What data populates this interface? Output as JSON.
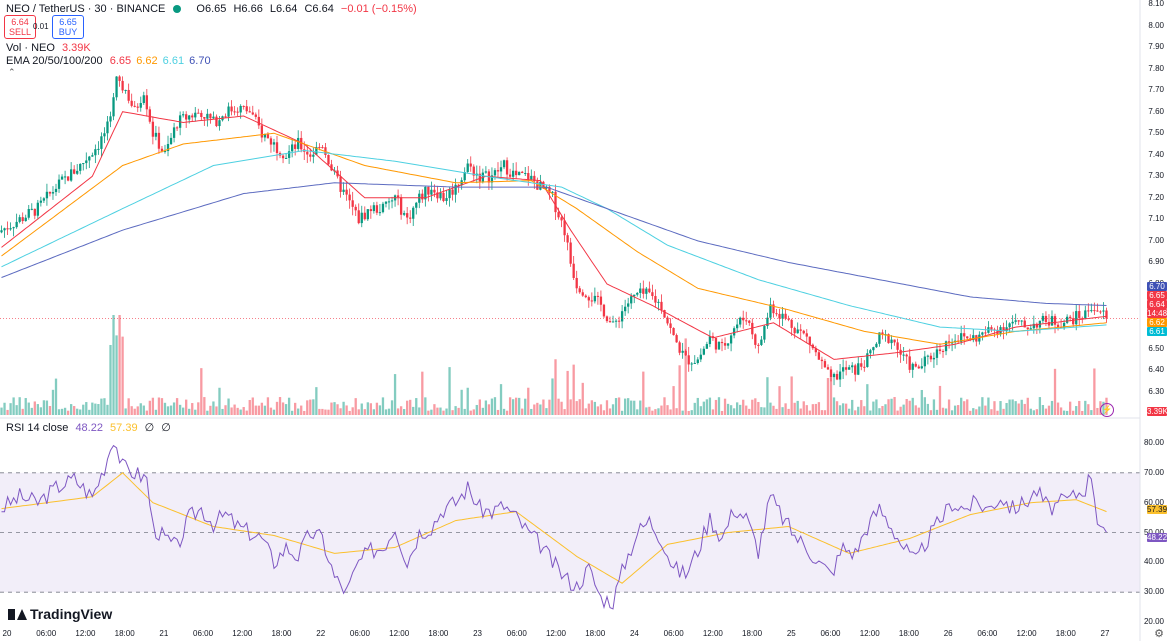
{
  "header": {
    "symbol_line": "NEO / TetherUS · 30 · BINANCE",
    "ohlc": {
      "o": "O6.65",
      "h": "H6.66",
      "l": "L6.64",
      "c": "C6.64",
      "chg": "−0.01 (−0.15%)"
    },
    "sell_price": "6.64",
    "sell_label": "SELL",
    "buy_price": "6.65",
    "buy_label": "BUY",
    "spread": "0.01"
  },
  "volume_legend": {
    "label": "Vol · NEO",
    "value": "3.39K"
  },
  "ema_legend": {
    "label": "EMA 20/50/100/200",
    "v20": "6.65",
    "v50": "6.62",
    "v100": "6.61",
    "v200": "6.70"
  },
  "rsi_legend": {
    "label": "RSI 14 close",
    "rsi": "48.22",
    "ma": "57.39",
    "z1": "∅",
    "z2": "∅"
  },
  "colors": {
    "up": "#089981",
    "down": "#f23645",
    "ema20": "#f23645",
    "ema50": "#ff9800",
    "ema100": "#4dd0e1",
    "ema200": "#5c6bc0",
    "rsi": "#7e57c2",
    "rsi_ma": "#fbc02d"
  },
  "price_axis": [
    "8.10",
    "8.00",
    "7.90",
    "7.80",
    "7.70",
    "7.60",
    "7.50",
    "7.40",
    "7.30",
    "7.20",
    "7.10",
    "7.00",
    "6.90",
    "6.80",
    "6.70",
    "6.60",
    "6.50",
    "6.40",
    "6.30",
    "6.20"
  ],
  "price_tags": {
    "ema200": "6.70",
    "buy": "6.65",
    "last": "6.64",
    "countdown": "14:48",
    "ema50": "6.62",
    "ema100": "6.61",
    "volume": "3.39K"
  },
  "rsi_axis": [
    "80.00",
    "70.00",
    "60.00",
    "50.00",
    "40.00",
    "30.00",
    "20.00"
  ],
  "rsi_tags": {
    "ma": "57.39",
    "rsi": "48.22"
  },
  "time_axis": [
    "20",
    "06:00",
    "12:00",
    "18:00",
    "21",
    "06:00",
    "12:00",
    "18:00",
    "22",
    "06:00",
    "12:00",
    "18:00",
    "23",
    "06:00",
    "12:00",
    "18:00",
    "24",
    "06:00",
    "12:00",
    "18:00",
    "25",
    "06:00",
    "12:00",
    "18:00",
    "26",
    "06:00",
    "12:00",
    "18:00",
    "27"
  ],
  "brand": "TradingView",
  "chart_data": [
    {
      "type": "candlestick",
      "title": "NEO / TetherUS · 30 · BINANCE",
      "ylim": [
        6.15,
        8.1
      ],
      "anchors_close": [
        [
          0,
          7.05
        ],
        [
          6,
          7.1
        ],
        [
          12,
          7.15
        ],
        [
          18,
          7.25
        ],
        [
          22,
          7.3
        ],
        [
          26,
          7.35
        ],
        [
          32,
          7.45
        ],
        [
          36,
          7.55
        ],
        [
          38,
          7.75
        ],
        [
          41,
          7.7
        ],
        [
          44,
          7.6
        ],
        [
          47,
          7.7
        ],
        [
          50,
          7.5
        ],
        [
          54,
          7.4
        ],
        [
          58,
          7.55
        ],
        [
          62,
          7.58
        ],
        [
          66,
          7.6
        ],
        [
          70,
          7.55
        ],
        [
          74,
          7.6
        ],
        [
          78,
          7.62
        ],
        [
          82,
          7.6
        ],
        [
          86,
          7.5
        ],
        [
          90,
          7.45
        ],
        [
          94,
          7.4
        ],
        [
          98,
          7.45
        ],
        [
          102,
          7.4
        ],
        [
          106,
          7.45
        ],
        [
          110,
          7.3
        ],
        [
          114,
          7.2
        ],
        [
          118,
          7.1
        ],
        [
          122,
          7.15
        ],
        [
          126,
          7.15
        ],
        [
          130,
          7.2
        ],
        [
          134,
          7.1
        ],
        [
          138,
          7.2
        ],
        [
          142,
          7.25
        ],
        [
          146,
          7.2
        ],
        [
          150,
          7.25
        ],
        [
          154,
          7.35
        ],
        [
          158,
          7.3
        ],
        [
          162,
          7.3
        ],
        [
          166,
          7.35
        ],
        [
          170,
          7.3
        ],
        [
          174,
          7.3
        ],
        [
          178,
          7.25
        ],
        [
          182,
          7.2
        ],
        [
          186,
          7.05
        ],
        [
          188,
          6.9
        ],
        [
          190,
          6.8
        ],
        [
          194,
          6.75
        ],
        [
          198,
          6.7
        ],
        [
          202,
          6.6
        ],
        [
          206,
          6.7
        ],
        [
          210,
          6.75
        ],
        [
          214,
          6.75
        ],
        [
          218,
          6.7
        ],
        [
          222,
          6.55
        ],
        [
          226,
          6.45
        ],
        [
          230,
          6.45
        ],
        [
          234,
          6.55
        ],
        [
          238,
          6.5
        ],
        [
          242,
          6.6
        ],
        [
          246,
          6.65
        ],
        [
          250,
          6.5
        ],
        [
          254,
          6.7
        ],
        [
          258,
          6.65
        ],
        [
          262,
          6.6
        ],
        [
          266,
          6.55
        ],
        [
          270,
          6.45
        ],
        [
          274,
          6.35
        ],
        [
          278,
          6.4
        ],
        [
          282,
          6.4
        ],
        [
          286,
          6.45
        ],
        [
          290,
          6.55
        ],
        [
          294,
          6.55
        ],
        [
          298,
          6.45
        ],
        [
          302,
          6.4
        ],
        [
          306,
          6.45
        ],
        [
          310,
          6.5
        ],
        [
          314,
          6.55
        ],
        [
          318,
          6.55
        ],
        [
          322,
          6.55
        ],
        [
          326,
          6.58
        ],
        [
          330,
          6.6
        ],
        [
          334,
          6.62
        ],
        [
          338,
          6.6
        ],
        [
          342,
          6.62
        ],
        [
          346,
          6.63
        ],
        [
          350,
          6.62
        ],
        [
          354,
          6.64
        ],
        [
          358,
          6.66
        ],
        [
          360,
          6.7
        ],
        [
          362,
          6.68
        ],
        [
          364,
          6.66
        ],
        [
          365,
          6.64
        ]
      ],
      "ema": {
        "ema20": [
          [
            0,
            6.97
          ],
          [
            30,
            7.3
          ],
          [
            40,
            7.6
          ],
          [
            60,
            7.55
          ],
          [
            80,
            7.58
          ],
          [
            100,
            7.45
          ],
          [
            120,
            7.2
          ],
          [
            140,
            7.2
          ],
          [
            160,
            7.3
          ],
          [
            178,
            7.28
          ],
          [
            188,
            7.05
          ],
          [
            200,
            6.8
          ],
          [
            215,
            6.7
          ],
          [
            235,
            6.55
          ],
          [
            255,
            6.62
          ],
          [
            275,
            6.45
          ],
          [
            295,
            6.48
          ],
          [
            315,
            6.52
          ],
          [
            335,
            6.6
          ],
          [
            365,
            6.65
          ]
        ],
        "ema50": [
          [
            0,
            6.93
          ],
          [
            40,
            7.35
          ],
          [
            60,
            7.45
          ],
          [
            90,
            7.5
          ],
          [
            120,
            7.35
          ],
          [
            150,
            7.27
          ],
          [
            175,
            7.28
          ],
          [
            190,
            7.15
          ],
          [
            210,
            6.95
          ],
          [
            230,
            6.78
          ],
          [
            260,
            6.68
          ],
          [
            285,
            6.58
          ],
          [
            310,
            6.52
          ],
          [
            335,
            6.58
          ],
          [
            365,
            6.62
          ]
        ],
        "ema100": [
          [
            0,
            6.88
          ],
          [
            40,
            7.15
          ],
          [
            70,
            7.35
          ],
          [
            100,
            7.42
          ],
          [
            130,
            7.37
          ],
          [
            160,
            7.3
          ],
          [
            185,
            7.25
          ],
          [
            200,
            7.15
          ],
          [
            220,
            6.98
          ],
          [
            250,
            6.82
          ],
          [
            280,
            6.7
          ],
          [
            310,
            6.6
          ],
          [
            335,
            6.58
          ],
          [
            365,
            6.61
          ]
        ],
        "ema200": [
          [
            0,
            6.83
          ],
          [
            40,
            7.05
          ],
          [
            80,
            7.22
          ],
          [
            110,
            7.27
          ],
          [
            150,
            7.25
          ],
          [
            180,
            7.25
          ],
          [
            200,
            7.15
          ],
          [
            230,
            7.0
          ],
          [
            260,
            6.9
          ],
          [
            290,
            6.82
          ],
          [
            320,
            6.74
          ],
          [
            345,
            6.71
          ],
          [
            365,
            6.7
          ]
        ]
      }
    },
    {
      "type": "bar",
      "title": "Vol · NEO",
      "last_value": "3.39K"
    },
    {
      "type": "line",
      "title": "RSI 14 close",
      "ylim": [
        20,
        80
      ],
      "bands": [
        30,
        50,
        70
      ],
      "rsi_anchors": [
        [
          0,
          58
        ],
        [
          6,
          62
        ],
        [
          12,
          60
        ],
        [
          18,
          65
        ],
        [
          24,
          68
        ],
        [
          30,
          62
        ],
        [
          34,
          72
        ],
        [
          37,
          82
        ],
        [
          40,
          72
        ],
        [
          44,
          70
        ],
        [
          48,
          68
        ],
        [
          50,
          52
        ],
        [
          54,
          48
        ],
        [
          58,
          45
        ],
        [
          62,
          55
        ],
        [
          66,
          58
        ],
        [
          70,
          53
        ],
        [
          74,
          56
        ],
        [
          78,
          52
        ],
        [
          82,
          50
        ],
        [
          86,
          48
        ],
        [
          90,
          40
        ],
        [
          94,
          45
        ],
        [
          98,
          42
        ],
        [
          102,
          50
        ],
        [
          106,
          48
        ],
        [
          110,
          35
        ],
        [
          114,
          30
        ],
        [
          118,
          40
        ],
        [
          122,
          44
        ],
        [
          126,
          45
        ],
        [
          130,
          52
        ],
        [
          134,
          40
        ],
        [
          138,
          50
        ],
        [
          142,
          52
        ],
        [
          146,
          58
        ],
        [
          150,
          60
        ],
        [
          154,
          65
        ],
        [
          158,
          58
        ],
        [
          162,
          57
        ],
        [
          166,
          59
        ],
        [
          170,
          55
        ],
        [
          174,
          50
        ],
        [
          178,
          46
        ],
        [
          182,
          40
        ],
        [
          186,
          35
        ],
        [
          190,
          32
        ],
        [
          194,
          38
        ],
        [
          198,
          28
        ],
        [
          202,
          27
        ],
        [
          206,
          40
        ],
        [
          210,
          50
        ],
        [
          214,
          54
        ],
        [
          218,
          48
        ],
        [
          222,
          38
        ],
        [
          226,
          36
        ],
        [
          230,
          44
        ],
        [
          234,
          55
        ],
        [
          238,
          48
        ],
        [
          242,
          58
        ],
        [
          246,
          55
        ],
        [
          250,
          44
        ],
        [
          254,
          62
        ],
        [
          258,
          55
        ],
        [
          262,
          49
        ],
        [
          266,
          45
        ],
        [
          270,
          40
        ],
        [
          274,
          36
        ],
        [
          278,
          45
        ],
        [
          282,
          43
        ],
        [
          286,
          52
        ],
        [
          290,
          58
        ],
        [
          294,
          52
        ],
        [
          298,
          45
        ],
        [
          302,
          40
        ],
        [
          306,
          48
        ],
        [
          310,
          54
        ],
        [
          314,
          60
        ],
        [
          318,
          58
        ],
        [
          322,
          60
        ],
        [
          326,
          58
        ],
        [
          330,
          62
        ],
        [
          334,
          58
        ],
        [
          338,
          60
        ],
        [
          342,
          64
        ],
        [
          346,
          58
        ],
        [
          350,
          60
        ],
        [
          354,
          62
        ],
        [
          358,
          65
        ],
        [
          360,
          70
        ],
        [
          362,
          55
        ],
        [
          364,
          52
        ],
        [
          365,
          48
        ]
      ],
      "ma_anchors": [
        [
          0,
          58
        ],
        [
          30,
          62
        ],
        [
          40,
          70
        ],
        [
          50,
          60
        ],
        [
          70,
          52
        ],
        [
          90,
          49
        ],
        [
          110,
          43
        ],
        [
          130,
          45
        ],
        [
          150,
          54
        ],
        [
          170,
          57
        ],
        [
          190,
          42
        ],
        [
          205,
          33
        ],
        [
          220,
          46
        ],
        [
          240,
          50
        ],
        [
          260,
          52
        ],
        [
          280,
          43
        ],
        [
          300,
          48
        ],
        [
          320,
          56
        ],
        [
          340,
          60
        ],
        [
          355,
          61
        ],
        [
          365,
          57
        ]
      ]
    }
  ]
}
